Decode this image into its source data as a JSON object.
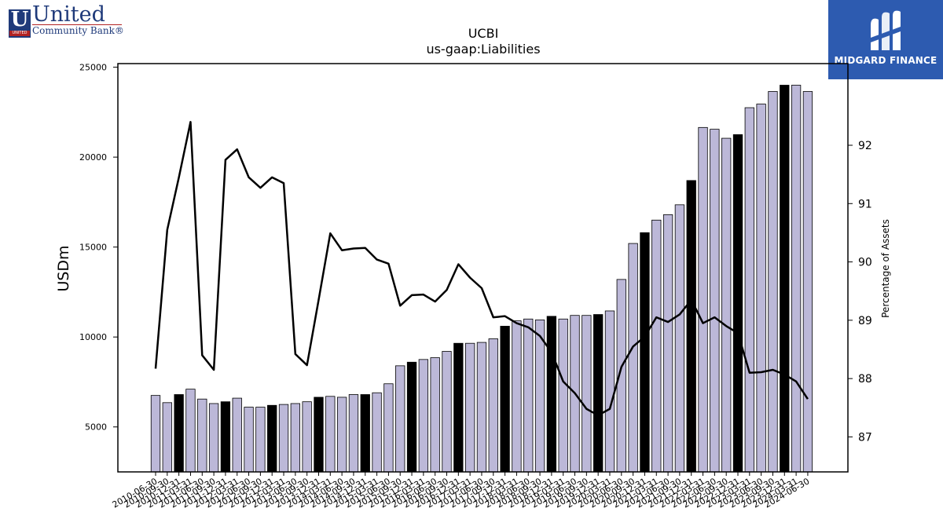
{
  "logos": {
    "left_name": "United",
    "left_sub": "Community Bank",
    "left_reg": "®",
    "left_badge": "UNITED",
    "right_name": "MIDGARD FINANCE"
  },
  "chart_data": {
    "type": "bar",
    "title": "UCBI",
    "subtitle": "us-gaap:Liabilities",
    "ylabel": "USDm",
    "y2label": "Percentage of Assets",
    "ylim": [
      2500,
      25200
    ],
    "y2lim": [
      86.4,
      93.4
    ],
    "yticks": [
      5000,
      10000,
      15000,
      20000,
      25000
    ],
    "y2ticks": [
      87,
      88,
      89,
      90,
      91,
      92
    ],
    "colors": {
      "bar_regular": "#bcb8d8",
      "bar_highlight": "#000000",
      "line": "#000000"
    },
    "categories": [
      "2010-06-30",
      "2010-09-30",
      "2010-12-31",
      "2011-03-31",
      "2011-06-30",
      "2011-09-30",
      "2011-12-31",
      "2012-03-31",
      "2012-06-30",
      "2012-09-30",
      "2012-12-31",
      "2013-03-31",
      "2013-06-30",
      "2013-09-30",
      "2013-12-31",
      "2014-03-31",
      "2014-06-30",
      "2014-09-30",
      "2014-12-31",
      "2015-03-31",
      "2015-06-30",
      "2015-09-30",
      "2015-12-31",
      "2016-03-31",
      "2016-06-30",
      "2016-09-30",
      "2016-12-31",
      "2017-03-31",
      "2017-06-30",
      "2017-09-30",
      "2017-12-31",
      "2018-03-31",
      "2018-06-30",
      "2018-09-30",
      "2018-12-31",
      "2019-03-31",
      "2019-06-30",
      "2019-09-30",
      "2019-12-31",
      "2020-03-31",
      "2020-06-30",
      "2020-09-30",
      "2020-12-31",
      "2021-03-31",
      "2021-06-30",
      "2021-09-30",
      "2021-12-31",
      "2022-03-31",
      "2022-06-30",
      "2022-09-30",
      "2022-12-31",
      "2023-03-31",
      "2023-06-30",
      "2023-09-30",
      "2023-12-31",
      "2024-03-31",
      "2024-06-30"
    ],
    "tick_labels": [
      "2010-06-30",
      "2010-09-30",
      "2010-12-31",
      "2011-03-31",
      "2011-06-30",
      "2011-09-30",
      "2011-12-31",
      "2012-03-31",
      "2012-06-30",
      "2012-09-30",
      "2012-12-31",
      "2013-03-31",
      "2013-06-30",
      "2013-09-30",
      "2013-12-31",
      "2014-03-31",
      "2014-06-30",
      "2014-09-30",
      "2014-12-31",
      "2015-03-31",
      "2015-06-30",
      "2015-09-30",
      "2015-12-31",
      "2016-03-31",
      "2016-06-30",
      "2016-09-30",
      "2016-12-31",
      "2017-03-31",
      "2017-06-30",
      "2017-09-30",
      "2017-12-31",
      "2018-03-31",
      "2018-06-30",
      "2018-09-30",
      "2018-12-31",
      "2019-03-31",
      "2019-06-30",
      "2019-09-30",
      "2019-12-31",
      "2020-03-31",
      "2020-06-30",
      "2020-09-30",
      "2020-12-31",
      "2021-03-31",
      "2021-06-30",
      "2021-09-30",
      "2021-12-31",
      "2022-03-31",
      "2022-06-30",
      "2022-09-30",
      "2022-12-31",
      "2023-03-31",
      "2023-06-30",
      "2023-09-30",
      "2023-12-31",
      "2024-03-31",
      "2024-06-30"
    ],
    "series": [
      {
        "kind": "bar",
        "axis": "left",
        "values": [
          6750,
          6350,
          6800,
          7100,
          6550,
          6300,
          6400,
          6600,
          6100,
          6100,
          6200,
          6250,
          6300,
          6400,
          6650,
          6700,
          6650,
          6800,
          6800,
          6900,
          7400,
          8400,
          8600,
          8750,
          8850,
          9200,
          9650,
          9650,
          9700,
          9900,
          10600,
          10900,
          11000,
          10950,
          11150,
          11000,
          11200,
          11200,
          11250,
          11450,
          13200,
          15200,
          15800,
          16500,
          16800,
          17350,
          18700,
          21650,
          21550,
          21050,
          21250,
          22750,
          22950,
          23650,
          24000,
          24000,
          23650
        ],
        "highlight": [
          false,
          false,
          true,
          false,
          false,
          false,
          true,
          false,
          false,
          false,
          true,
          false,
          false,
          false,
          true,
          false,
          false,
          false,
          true,
          false,
          false,
          false,
          true,
          false,
          false,
          false,
          true,
          false,
          false,
          false,
          true,
          false,
          false,
          false,
          true,
          false,
          false,
          false,
          true,
          false,
          false,
          false,
          true,
          false,
          false,
          false,
          true,
          false,
          false,
          false,
          true,
          false,
          false,
          false,
          true,
          false,
          false
        ]
      },
      {
        "kind": "line",
        "axis": "right",
        "values": [
          88.17,
          90.55,
          91.45,
          92.4,
          88.4,
          88.15,
          91.75,
          91.93,
          91.45,
          91.27,
          91.45,
          91.35,
          88.42,
          88.23,
          89.35,
          90.49,
          90.2,
          90.23,
          90.24,
          90.04,
          89.97,
          89.25,
          89.43,
          89.44,
          89.32,
          89.52,
          89.96,
          89.73,
          89.55,
          89.05,
          89.07,
          88.95,
          88.88,
          88.73,
          88.45,
          87.95,
          87.75,
          87.48,
          87.37,
          87.48,
          88.2,
          88.55,
          88.72,
          89.05,
          88.97,
          89.1,
          89.35,
          88.95,
          89.05,
          88.9,
          88.78,
          88.1,
          88.11,
          88.15,
          88.07,
          87.95,
          87.65
        ]
      }
    ],
    "grid": false,
    "legend": "none"
  }
}
